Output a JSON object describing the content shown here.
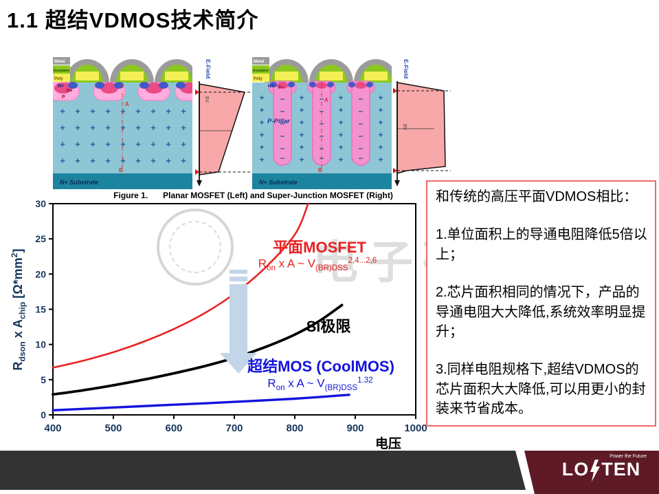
{
  "title": "1.1 超结VDMOS技术简介",
  "figure": {
    "caption_label": "Figure 1.",
    "caption_text": "Planar MOSFET (Left) and Super-Junction MOSFET (Right)",
    "layers": {
      "metal": "Metal",
      "insulator": "Insulator",
      "poly": "Poly"
    },
    "regions": {
      "nplus": "N+",
      "pplus": "P+",
      "p": "P",
      "substrate": "N+ Substrate",
      "pillar": "P-Pillar"
    },
    "markers": {
      "top": "A",
      "bottom": "B"
    },
    "efield": {
      "axis_label": "E-Field",
      "bv": "BV"
    },
    "plus_sign": "+",
    "minus_sign": "−"
  },
  "chart_data": {
    "type": "line",
    "title": "",
    "xlabel": "电压",
    "ylabel": "Rdson x Achip [Ω*mm²]",
    "xlim": [
      400,
      1000
    ],
    "ylim": [
      0,
      30
    ],
    "xticks": [
      400,
      500,
      600,
      700,
      800,
      900,
      1000
    ],
    "yticks": [
      0,
      5,
      10,
      15,
      20,
      25,
      30
    ],
    "grid": false,
    "legend": "none (inline labels)",
    "series": [
      {
        "name": "平面MOSFET",
        "color": "#e82222",
        "formula": "Ron x A ~ V(BR)DSS^2,4...2,6",
        "x": [
          400,
          450,
          500,
          550,
          600,
          650,
          700,
          750,
          800,
          822
        ],
        "y": [
          6.7,
          7.7,
          8.9,
          10.4,
          12.2,
          14.4,
          17.2,
          20.8,
          25.6,
          30
        ]
      },
      {
        "name": "Si极限",
        "color": "#000000",
        "formula": "",
        "x": [
          400,
          450,
          500,
          550,
          600,
          650,
          700,
          750,
          800,
          840,
          878
        ],
        "y": [
          2.9,
          3.5,
          4.2,
          5.0,
          5.9,
          6.9,
          8.1,
          9.6,
          11.4,
          13.3,
          15.6
        ]
      },
      {
        "name": "超结MOS (CoolMOS)",
        "color": "#1414dd",
        "formula": "Ron x A ~ V(BR)DSS^1.32",
        "x": [
          400,
          500,
          600,
          700,
          800,
          890
        ],
        "y": [
          0.65,
          1.05,
          1.45,
          1.85,
          2.3,
          2.85
        ]
      }
    ]
  },
  "ylabel_parts": {
    "r": "R",
    "r_sub": "dson",
    "mid": " x A",
    "a_sub": "chip",
    "unit_pre": " [Ω*mm",
    "unit_sup": "2",
    "unit_post": "]"
  },
  "annotations": {
    "planar_label": "平面MOSFET",
    "si_label": "Si极限",
    "sj_label": "超结MOS (CoolMOS)",
    "formula_planar": {
      "r": "R",
      "r_sub": "on",
      "mid": " x A  ~ V",
      "v_sub": "(BR)DSS",
      "sup": "2,4...2,6"
    },
    "formula_sj": {
      "r": "R",
      "r_sub": "on",
      "mid": " x A  ~ V",
      "v_sub": "(BR)DSS",
      "sup": "1.32"
    }
  },
  "watermark": {
    "text": "电子研习社"
  },
  "note_box": {
    "heading": "和传统的高压平面VDMOS相比：",
    "items": [
      "1.单位面积上的导通电阻降低5倍以上；",
      "2.芯片面积相同的情况下，产品的导通电阻大大降低,系统效率明显提升；",
      "3.同样电阻规格下,超结VDMOS的芯片面积大大降低,可以用更小的封装来节省成本。"
    ]
  },
  "footer": {
    "logo_left": "LO",
    "logo_right": "TEN",
    "logo_full": "LOVTEN",
    "tagline": "Power the Future"
  },
  "colors": {
    "planar_curve": "#e82222",
    "si_curve": "#000000",
    "sj_curve": "#1414dd",
    "axis_text": "#17365d",
    "note_border": "#ee6a6a",
    "footer_bar": "#333333",
    "brand_maroon": "#5e1b26",
    "efield_fill": "#f8a8a8",
    "epi_blue": "#8ec6d6",
    "substrate_teal": "#1d84a0",
    "arrow_blue": "#c2d6e8"
  }
}
